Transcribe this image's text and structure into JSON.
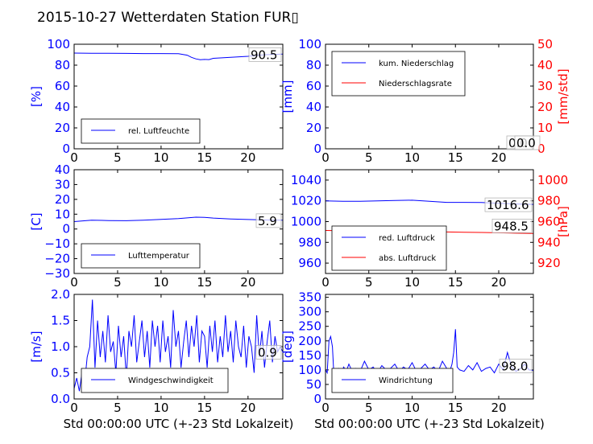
{
  "figure": {
    "title": "2015-10-27 Wetterdaten Station FUR▯"
  },
  "chart_data": [
    {
      "id": "humidity",
      "type": "line",
      "ylabel": "[%]",
      "xlim": [
        0,
        24
      ],
      "ylim": [
        0,
        100
      ],
      "xticks": [
        0,
        5,
        10,
        15,
        20
      ],
      "yticks": [
        0,
        20,
        40,
        60,
        80,
        100
      ],
      "last_value_label": "90.5",
      "legend": {
        "position": "lower-left",
        "entries": [
          {
            "label": "rel. Luftfeuchte",
            "color": "#0000ff"
          }
        ]
      },
      "series": [
        {
          "name": "rel. Luftfeuchte",
          "color": "#0000ff",
          "x": [
            0,
            2,
            4,
            6,
            8,
            10,
            12,
            13,
            13.5,
            14,
            14.5,
            15,
            15.5,
            16,
            17,
            18,
            20,
            22,
            24
          ],
          "y": [
            91.5,
            91.4,
            91.3,
            91.2,
            91.1,
            91.1,
            91,
            89.5,
            87.5,
            86,
            85.2,
            85.5,
            85.3,
            86.5,
            87,
            87.5,
            88.5,
            90,
            90.5
          ]
        }
      ]
    },
    {
      "id": "precipitation",
      "type": "line",
      "ylabel": "[mm]",
      "ylabel_right": "[mm/std]",
      "xlim": [
        0,
        24
      ],
      "ylim": [
        0,
        100
      ],
      "ylim_right": [
        0,
        50
      ],
      "xticks": [
        0,
        5,
        10,
        15,
        20
      ],
      "yticks": [
        0,
        20,
        40,
        60,
        80,
        100
      ],
      "yticks_right": [
        0,
        10,
        20,
        30,
        40,
        50
      ],
      "last_value_label": "0.0",
      "last_value_label_right": "0.0",
      "legend": {
        "position": "upper-left",
        "entries": [
          {
            "label": "kum. Niederschlag",
            "color": "#0000ff"
          },
          {
            "label": "Niederschlagsrate",
            "color": "#ff0000"
          }
        ]
      },
      "series": [
        {
          "name": "kum. Niederschlag",
          "color": "#0000ff",
          "axis": "left",
          "x": [
            0,
            24
          ],
          "y": [
            0,
            0
          ]
        },
        {
          "name": "Niederschlagsrate",
          "color": "#ff0000",
          "axis": "right",
          "x": [
            0,
            24
          ],
          "y": [
            0,
            0
          ]
        }
      ]
    },
    {
      "id": "temperature",
      "type": "line",
      "ylabel": "[C]",
      "xlim": [
        0,
        24
      ],
      "ylim": [
        -30,
        40
      ],
      "xticks": [
        0,
        5,
        10,
        15,
        20
      ],
      "yticks": [
        -30,
        -20,
        -10,
        0,
        10,
        20,
        30,
        40
      ],
      "last_value_label": "5.9",
      "legend": {
        "position": "lower-left",
        "entries": [
          {
            "label": "Lufttemperatur",
            "color": "#0000ff"
          }
        ]
      },
      "series": [
        {
          "name": "Lufttemperatur",
          "color": "#0000ff",
          "x": [
            0,
            1,
            2,
            4,
            6,
            8,
            10,
            12,
            13,
            14,
            15,
            16,
            18,
            20,
            22,
            24
          ],
          "y": [
            5,
            5.5,
            6,
            5.7,
            5.6,
            6,
            6.5,
            7,
            7.5,
            8,
            7.8,
            7.4,
            6.8,
            6.4,
            6.1,
            5.9
          ]
        }
      ]
    },
    {
      "id": "pressure",
      "type": "line",
      "ylabel_right": "[hPa]",
      "xlim": [
        0,
        24
      ],
      "ylim": [
        950,
        1050
      ],
      "ylim_right": [
        910,
        1010
      ],
      "xticks": [
        0,
        5,
        10,
        15,
        20
      ],
      "yticks": [
        960,
        980,
        1000,
        1020,
        1040
      ],
      "yticks_right": [
        920,
        940,
        960,
        980,
        1000
      ],
      "last_value_label": "1016.6",
      "last_value_label_right": "948.5",
      "legend": {
        "position": "lower-left",
        "entries": [
          {
            "label": "red. Luftdruck",
            "color": "#0000ff"
          },
          {
            "label": "abs. Luftdruck",
            "color": "#ff0000"
          }
        ]
      },
      "series": [
        {
          "name": "red. Luftdruck",
          "color": "#0000ff",
          "axis": "left",
          "x": [
            0,
            2,
            4,
            6,
            8,
            10,
            12,
            14,
            16,
            18,
            20,
            22,
            24
          ],
          "y": [
            1020,
            1019.6,
            1019.5,
            1020,
            1020.4,
            1020.6,
            1019.5,
            1018.5,
            1018.5,
            1018.4,
            1017.6,
            1017,
            1016.6
          ]
        },
        {
          "name": "abs. Luftdruck",
          "color": "#ff0000",
          "axis": "right",
          "x": [
            0,
            2,
            4,
            6,
            8,
            10,
            12,
            14,
            16,
            18,
            20,
            22,
            24
          ],
          "y": [
            951.5,
            951.2,
            951.2,
            951.4,
            951.5,
            951.2,
            950.5,
            950,
            949.7,
            949.5,
            949.2,
            948.8,
            948.5
          ]
        }
      ]
    },
    {
      "id": "wind_speed",
      "type": "line",
      "ylabel": "[m/s]",
      "xlabel": "Std 00:00:00 UTC (+-23 Std Lokalzeit)",
      "xlim": [
        0,
        24
      ],
      "ylim": [
        0,
        2
      ],
      "xticks": [
        0,
        5,
        10,
        15,
        20
      ],
      "yticks": [
        0,
        0.5,
        1,
        1.5,
        2
      ],
      "ytick_labels": [
        "0.0",
        "0.5",
        "1.0",
        "1.5",
        "2.0"
      ],
      "last_value_label": "0.9",
      "legend": {
        "position": "lower-center",
        "entries": [
          {
            "label": "Windgeschwindigkeit",
            "color": "#0000ff"
          }
        ]
      },
      "series": [
        {
          "name": "Windgeschwindigkeit",
          "color": "#0000ff",
          "x": [
            0,
            0.3,
            0.6,
            0.9,
            1.2,
            1.5,
            1.8,
            2.1,
            2.4,
            2.7,
            3,
            3.3,
            3.6,
            3.9,
            4.2,
            4.5,
            4.8,
            5.1,
            5.4,
            5.7,
            6,
            6.3,
            6.6,
            6.9,
            7.2,
            7.5,
            7.8,
            8.1,
            8.4,
            8.7,
            9,
            9.3,
            9.6,
            9.9,
            10.2,
            10.5,
            10.8,
            11.1,
            11.4,
            11.7,
            12,
            12.3,
            12.6,
            12.9,
            13.2,
            13.5,
            13.8,
            14.1,
            14.4,
            14.7,
            15,
            15.3,
            15.6,
            15.9,
            16.2,
            16.5,
            16.8,
            17.1,
            17.4,
            17.7,
            18,
            18.3,
            18.6,
            18.9,
            19.2,
            19.5,
            19.8,
            20.1,
            20.4,
            20.7,
            21,
            21.3,
            21.6,
            21.9,
            22.2,
            22.5,
            22.8,
            23.1,
            23.4,
            23.7,
            24
          ],
          "y": [
            0.2,
            0.4,
            0.15,
            0.5,
            0.3,
            0.8,
            1.0,
            1.9,
            0.6,
            1.5,
            0.8,
            1.3,
            0.7,
            1.6,
            0.9,
            1.1,
            0.5,
            1.4,
            0.8,
            1.2,
            0.4,
            1.3,
            1.0,
            1.6,
            0.7,
            1.1,
            1.5,
            0.8,
            1.3,
            0.6,
            1.5,
            1.0,
            1.4,
            0.7,
            1.5,
            0.9,
            1.2,
            0.6,
            1.7,
            1.0,
            1.3,
            0.6,
            1.1,
            1.5,
            0.8,
            1.4,
            1.0,
            1.6,
            0.7,
            1.3,
            1.2,
            0.6,
            1.4,
            0.9,
            1.5,
            0.7,
            1.2,
            0.8,
            1.6,
            0.9,
            1.3,
            0.7,
            1.5,
            1.0,
            0.8,
            1.4,
            0.6,
            1.2,
            1.0,
            0.5,
            1.6,
            0.8,
            1.3,
            0.6,
            1.1,
            1.5,
            0.7,
            1.2,
            0.9,
            1.0,
            0.9
          ]
        }
      ]
    },
    {
      "id": "wind_direction",
      "type": "line",
      "ylabel": "[deg]",
      "xlabel": "Std 00:00:00 UTC (+-23 Std Lokalzeit)",
      "xlim": [
        0,
        24
      ],
      "ylim": [
        0,
        360
      ],
      "xticks": [
        0,
        5,
        10,
        15,
        20
      ],
      "yticks": [
        0,
        50,
        100,
        150,
        200,
        250,
        300,
        350
      ],
      "last_value_label": "98.0",
      "legend": {
        "position": "lower-left",
        "entries": [
          {
            "label": "Windrichtung",
            "color": "#0000ff"
          }
        ]
      },
      "series": [
        {
          "name": "Windrichtung",
          "color": "#0000ff",
          "x": [
            0,
            0.2,
            0.4,
            0.6,
            0.8,
            1.0,
            1.2,
            1.5,
            1.8,
            2.1,
            2.4,
            2.7,
            3,
            3.5,
            4,
            4.5,
            5,
            5.5,
            6,
            6.5,
            7,
            7.5,
            8,
            8.5,
            9,
            9.5,
            10,
            10.5,
            11,
            11.5,
            12,
            12.5,
            13,
            13.5,
            14,
            14.3,
            14.6,
            14.8,
            15.0,
            15.2,
            15.5,
            16,
            16.5,
            17,
            17.5,
            18,
            18.5,
            19,
            19.5,
            20,
            20.5,
            21,
            21.5,
            22,
            22.5,
            23,
            23.5,
            24
          ],
          "y": [
            100,
            90,
            200,
            215,
            180,
            60,
            95,
            105,
            90,
            110,
            95,
            120,
            100,
            105,
            95,
            130,
            100,
            110,
            90,
            115,
            100,
            105,
            120,
            95,
            110,
            100,
            125,
            95,
            105,
            120,
            100,
            110,
            95,
            130,
            105,
            90,
            120,
            160,
            240,
            110,
            100,
            95,
            115,
            100,
            125,
            95,
            105,
            110,
            90,
            120,
            100,
            160,
            110,
            95,
            105,
            120,
            100,
            98
          ]
        }
      ]
    }
  ]
}
